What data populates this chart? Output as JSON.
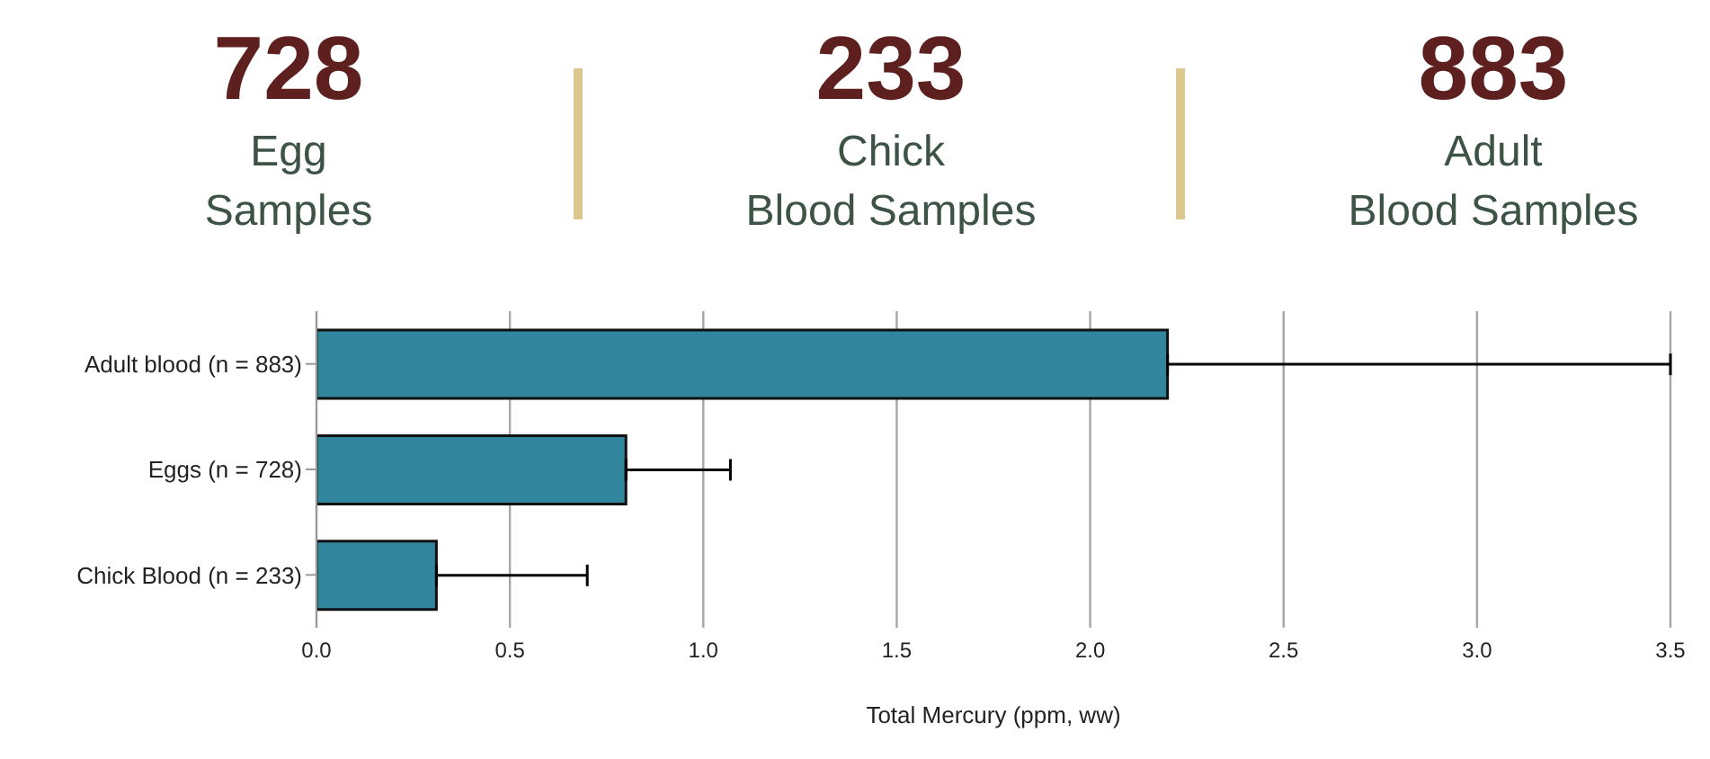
{
  "chart_data": {
    "type": "bar",
    "orientation": "horizontal",
    "annotations": [
      "728",
      "Egg\nSamples",
      "233",
      "Chick\nBlood Samples",
      "883",
      "Adult\nBlood Samples"
    ],
    "categories": [
      "Adult blood (n = 883)",
      "Eggs (n = 728)",
      "Chick Blood (n = 233)"
    ],
    "values": [
      2.2,
      0.8,
      0.31
    ],
    "errors": [
      [
        2.2,
        3.5
      ],
      [
        0.8,
        1.07
      ],
      [
        0.31,
        0.7
      ]
    ],
    "color": "#31859c",
    "xlabel": "Total Mercury (ppm, ww)",
    "xlim": [
      0,
      3.5
    ],
    "xticks": [
      {
        "value": 0,
        "label": "0.0"
      },
      {
        "value": 0.5,
        "label": "0.5"
      },
      {
        "value": 1,
        "label": "1.0"
      },
      {
        "value": 1.5,
        "label": "1.5"
      },
      {
        "value": 2,
        "label": "2.0"
      },
      {
        "value": 2.5,
        "label": "2.5"
      },
      {
        "value": 3,
        "label": "3.0"
      },
      {
        "value": 3.5,
        "label": "3.5"
      }
    ],
    "grid": "x"
  }
}
